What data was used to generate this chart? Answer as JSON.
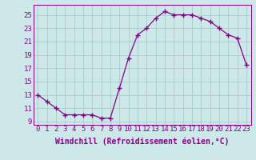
{
  "x": [
    0,
    1,
    2,
    3,
    4,
    5,
    6,
    7,
    8,
    9,
    10,
    11,
    12,
    13,
    14,
    15,
    16,
    17,
    18,
    19,
    20,
    21,
    22,
    23
  ],
  "y": [
    13,
    12,
    11,
    10,
    10,
    10,
    10,
    9.5,
    9.5,
    14,
    18.5,
    22,
    23,
    24.5,
    25.5,
    25,
    25,
    25,
    24.5,
    24,
    23,
    22,
    21.5,
    17.5
  ],
  "line_color": "#880088",
  "marker": "+",
  "marker_size": 4,
  "bg_color": "#cce8e8",
  "grid_color": "#aacccc",
  "xlabel": "Windchill (Refroidissement éolien,°C)",
  "xlim": [
    -0.5,
    23.5
  ],
  "ylim": [
    8.5,
    26.5
  ],
  "yticks": [
    9,
    11,
    13,
    15,
    17,
    19,
    21,
    23,
    25
  ],
  "xticks": [
    0,
    1,
    2,
    3,
    4,
    5,
    6,
    7,
    8,
    9,
    10,
    11,
    12,
    13,
    14,
    15,
    16,
    17,
    18,
    19,
    20,
    21,
    22,
    23
  ],
  "tick_color": "#880088",
  "label_color": "#880088",
  "font_size": 6.5,
  "xlabel_fontsize": 7,
  "lw": 0.9
}
